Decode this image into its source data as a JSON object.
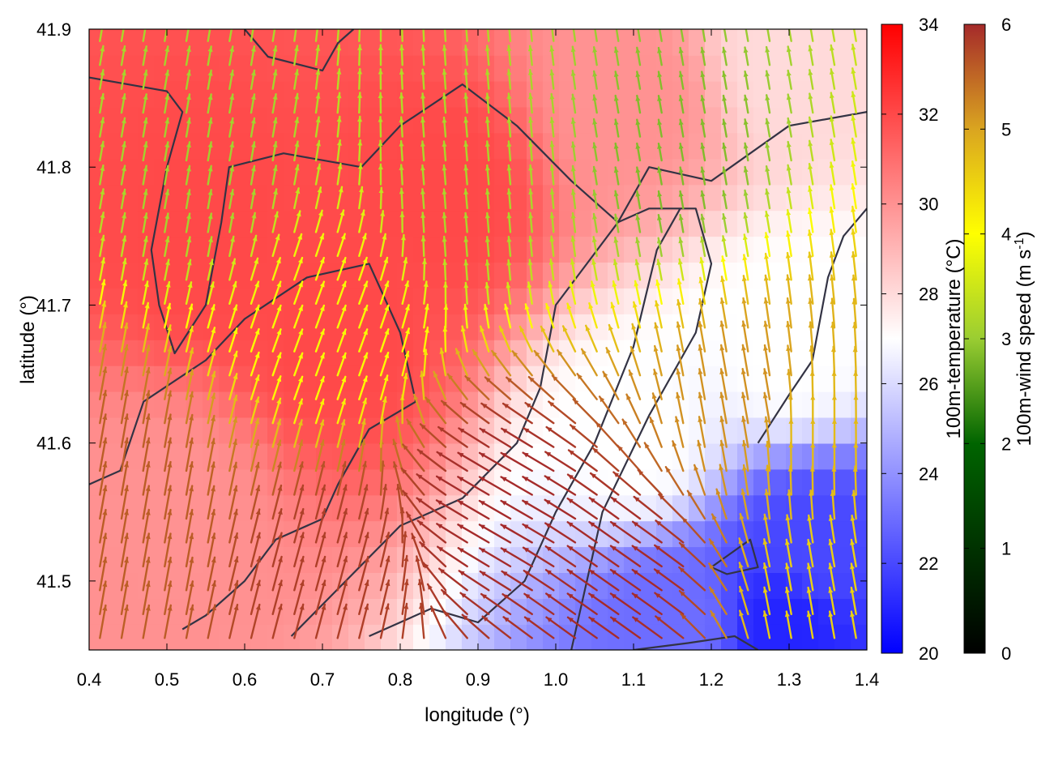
{
  "chart_data": {
    "type": "heatmap",
    "subtype": "vector-field-over-temperature-map",
    "xlabel": "longitude (°)",
    "ylabel": "latitude (°)",
    "xlim": [
      0.4,
      1.4
    ],
    "ylim": [
      41.45,
      41.9
    ],
    "x_ticks": [
      "0.4",
      "0.5",
      "0.6",
      "0.7",
      "0.8",
      "0.9",
      "1.0",
      "1.1",
      "1.2",
      "1.3",
      "1.4"
    ],
    "y_ticks": [
      "41.5",
      "41.6",
      "41.7",
      "41.8",
      "41.9"
    ],
    "grid": false,
    "colorbars": [
      {
        "label": "100m-temperature (°C)",
        "range": [
          20,
          34
        ],
        "ticks": [
          "20",
          "22",
          "24",
          "26",
          "28",
          "30",
          "32",
          "34"
        ],
        "colors": [
          "#0000ff",
          "#ffffff",
          "#ff0000"
        ]
      },
      {
        "label_main": "100m-wind speed (m s",
        "label_sup": "-1",
        "label_close": ")",
        "range": [
          0,
          6
        ],
        "ticks": [
          "0",
          "1",
          "2",
          "3",
          "4",
          "5",
          "6"
        ],
        "colors": [
          "#000000",
          "#006400",
          "#9acd32",
          "#ffff00",
          "#daa520",
          "#a52a2a"
        ]
      }
    ],
    "temperature_regions": [
      {
        "lon": 0.55,
        "lat": 41.75,
        "temp_c": 32
      },
      {
        "lon": 0.72,
        "lat": 41.68,
        "temp_c": 32
      },
      {
        "lon": 0.85,
        "lat": 41.78,
        "temp_c": 32
      },
      {
        "lon": 0.5,
        "lat": 41.55,
        "temp_c": 30
      },
      {
        "lon": 1.1,
        "lat": 41.85,
        "temp_c": 30
      },
      {
        "lon": 1.3,
        "lat": 41.88,
        "temp_c": 28
      },
      {
        "lon": 1.1,
        "lat": 41.6,
        "temp_c": 27
      },
      {
        "lon": 1.3,
        "lat": 41.67,
        "temp_c": 27
      },
      {
        "lon": 1.33,
        "lat": 41.52,
        "temp_c": 22
      },
      {
        "lon": 1.3,
        "lat": 41.47,
        "temp_c": 21
      },
      {
        "lon": 1.15,
        "lat": 41.47,
        "temp_c": 23
      }
    ],
    "wind_regions": [
      {
        "lon": 0.55,
        "lat": 41.8,
        "speed": 2.5,
        "dir_deg": 80
      },
      {
        "lon": 0.9,
        "lat": 41.78,
        "speed": 2.6,
        "dir_deg": 95
      },
      {
        "lon": 1.15,
        "lat": 41.8,
        "speed": 2.2,
        "dir_deg": 100
      },
      {
        "lon": 0.7,
        "lat": 41.68,
        "speed": 3.5,
        "dir_deg": 70
      },
      {
        "lon": 0.45,
        "lat": 41.55,
        "speed": 5.5,
        "dir_deg": 80
      },
      {
        "lon": 0.7,
        "lat": 41.5,
        "speed": 5.8,
        "dir_deg": 75
      },
      {
        "lon": 0.95,
        "lat": 41.55,
        "speed": 6.0,
        "dir_deg": 150
      },
      {
        "lon": 1.1,
        "lat": 41.5,
        "speed": 6.0,
        "dir_deg": 145
      },
      {
        "lon": 1.25,
        "lat": 41.62,
        "speed": 5.0,
        "dir_deg": 100
      },
      {
        "lon": 1.33,
        "lat": 41.6,
        "speed": 4.5,
        "dir_deg": 90
      },
      {
        "lon": 1.35,
        "lat": 41.48,
        "speed": 4.2,
        "dir_deg": 100
      }
    ],
    "contours": [
      [
        [
          0.4,
          41.865
        ],
        [
          0.45,
          41.86
        ],
        [
          0.5,
          41.855
        ],
        [
          0.52,
          41.84
        ],
        [
          0.5,
          41.8
        ],
        [
          0.48,
          41.74
        ],
        [
          0.49,
          41.7
        ],
        [
          0.51,
          41.665
        ],
        [
          0.55,
          41.7
        ],
        [
          0.57,
          41.76
        ],
        [
          0.58,
          41.8
        ],
        [
          0.65,
          41.81
        ],
        [
          0.75,
          41.8
        ],
        [
          0.8,
          41.83
        ],
        [
          0.88,
          41.86
        ],
        [
          0.95,
          41.83
        ],
        [
          1.02,
          41.79
        ],
        [
          1.08,
          41.76
        ],
        [
          1.12,
          41.8
        ],
        [
          1.2,
          41.79
        ],
        [
          1.3,
          41.83
        ],
        [
          1.4,
          41.84
        ]
      ],
      [
        [
          0.4,
          41.57
        ],
        [
          0.44,
          41.58
        ],
        [
          0.47,
          41.63
        ],
        [
          0.55,
          41.66
        ],
        [
          0.6,
          41.69
        ],
        [
          0.68,
          41.72
        ],
        [
          0.76,
          41.73
        ],
        [
          0.8,
          41.68
        ],
        [
          0.82,
          41.63
        ],
        [
          0.76,
          41.61
        ],
        [
          0.72,
          41.57
        ],
        [
          0.7,
          41.545
        ],
        [
          0.64,
          41.53
        ],
        [
          0.6,
          41.5
        ],
        [
          0.55,
          41.475
        ],
        [
          0.52,
          41.465
        ]
      ],
      [
        [
          0.66,
          41.46
        ],
        [
          0.73,
          41.5
        ],
        [
          0.8,
          41.54
        ],
        [
          0.88,
          41.56
        ],
        [
          0.95,
          41.6
        ],
        [
          0.98,
          41.64
        ],
        [
          1.0,
          41.7
        ],
        [
          1.04,
          41.73
        ],
        [
          1.08,
          41.76
        ],
        [
          1.12,
          41.77
        ],
        [
          1.18,
          41.77
        ],
        [
          1.2,
          41.73
        ],
        [
          1.18,
          41.68
        ],
        [
          1.12,
          41.62
        ],
        [
          1.06,
          41.55
        ],
        [
          1.04,
          41.5
        ],
        [
          1.02,
          41.45
        ]
      ],
      [
        [
          0.76,
          41.46
        ],
        [
          0.84,
          41.48
        ],
        [
          0.9,
          41.47
        ],
        [
          0.96,
          41.5
        ],
        [
          1.0,
          41.55
        ],
        [
          1.05,
          41.6
        ],
        [
          1.1,
          41.67
        ],
        [
          1.13,
          41.74
        ],
        [
          1.16,
          41.77
        ]
      ],
      [
        [
          1.1,
          41.45
        ],
        [
          1.17,
          41.455
        ],
        [
          1.23,
          41.46
        ],
        [
          1.26,
          41.45
        ]
      ],
      [
        [
          1.2,
          41.51
        ],
        [
          1.25,
          41.53
        ],
        [
          1.26,
          41.51
        ],
        [
          1.22,
          41.505
        ],
        [
          1.2,
          41.51
        ]
      ],
      [
        [
          1.26,
          41.6
        ],
        [
          1.3,
          41.635
        ],
        [
          1.33,
          41.66
        ],
        [
          1.35,
          41.72
        ],
        [
          1.37,
          41.75
        ],
        [
          1.4,
          41.77
        ]
      ],
      [
        [
          0.6,
          41.9
        ],
        [
          0.63,
          41.88
        ],
        [
          0.7,
          41.87
        ],
        [
          0.72,
          41.89
        ],
        [
          0.74,
          41.9
        ]
      ]
    ]
  }
}
